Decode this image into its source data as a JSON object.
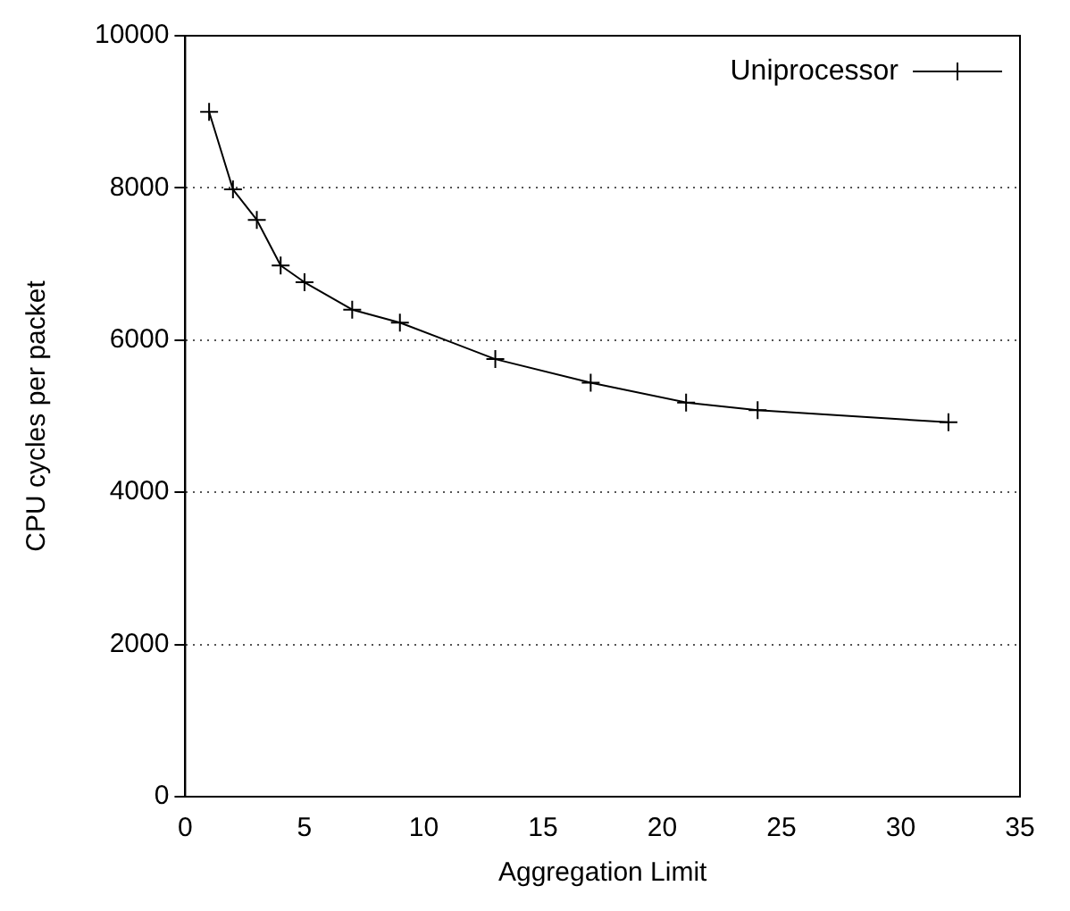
{
  "chart_data": {
    "type": "line",
    "xlabel": "Aggregation Limit",
    "ylabel": "CPU cycles per packet",
    "x": [
      1,
      2,
      3,
      4,
      5,
      7,
      9,
      13,
      17,
      21,
      24,
      32
    ],
    "series": [
      {
        "name": "Uniprocessor",
        "color": "#000000",
        "values": [
          9000,
          7980,
          7580,
          6980,
          6760,
          6400,
          6230,
          5750,
          5440,
          5180,
          5080,
          4920
        ]
      }
    ],
    "xlim": [
      0,
      35
    ],
    "xticks": [
      0,
      5,
      10,
      15,
      20,
      25,
      30,
      35
    ],
    "ylim": [
      0,
      10000
    ],
    "yticks": [
      0,
      2000,
      4000,
      6000,
      8000,
      10000
    ],
    "grid": "y",
    "legend": "top right",
    "marker": "cross",
    "line_style": "solid"
  }
}
